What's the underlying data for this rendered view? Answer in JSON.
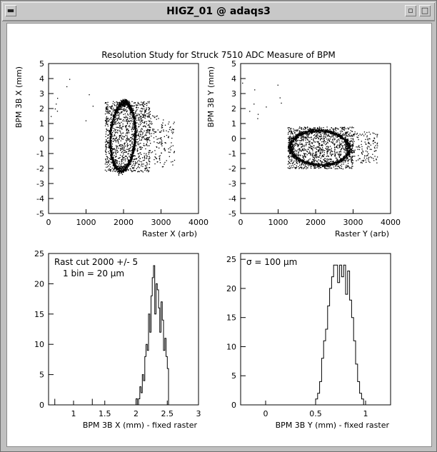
{
  "window": {
    "title": "HIGZ_01 @ adaqs3",
    "icons": [
      "menu-icon",
      "minimize-icon",
      "maximize-icon"
    ]
  },
  "figure": {
    "title": "Resolution Study for Struck 7510 ADC Measure of BPM"
  },
  "chart_data": [
    {
      "type": "scatter",
      "xlabel": "Raster X (arb)",
      "ylabel": "BPM 3B X (mm)",
      "xlim": [
        0,
        4000
      ],
      "ylim": [
        -5,
        5
      ],
      "xticks": [
        0,
        1000,
        2000,
        3000,
        4000
      ],
      "yticks": [
        -5,
        -4,
        -3,
        -2,
        -1,
        0,
        1,
        2,
        3,
        4,
        5
      ],
      "ring": {
        "cx": 1970,
        "cy": 0.15,
        "rx": 330,
        "ry": 2.25,
        "tilt": 0.15
      },
      "band": {
        "x": [
          1500,
          2700
        ],
        "y": [
          -2.2,
          2.5
        ]
      },
      "tail": {
        "x": [
          2700,
          3350
        ],
        "y": [
          -2.0,
          1.6
        ]
      }
    },
    {
      "type": "scatter",
      "xlabel": "Raster Y (arb)",
      "ylabel": "BPM 3B Y (mm)",
      "xlim": [
        0,
        4000
      ],
      "ylim": [
        -5,
        5
      ],
      "xticks": [
        0,
        1000,
        2000,
        3000,
        4000
      ],
      "yticks": [
        -5,
        -4,
        -3,
        -2,
        -1,
        0,
        1,
        2,
        3,
        4,
        5
      ],
      "ring": {
        "cx": 2100,
        "cy": -0.6,
        "rx": 780,
        "ry": 1.15,
        "tilt": -0.08
      },
      "band": {
        "x": [
          1250,
          3000
        ],
        "y": [
          -2.0,
          0.8
        ]
      },
      "tail": {
        "x": [
          3000,
          3650
        ],
        "y": [
          -1.6,
          0.5
        ]
      }
    },
    {
      "type": "histogram",
      "xlabel": "BPM 3B X (mm) - fixed raster",
      "xlim": [
        0.6,
        3.0
      ],
      "ylim": [
        0,
        25
      ],
      "xticks": [
        1,
        1.5,
        2,
        2.5,
        3
      ],
      "yticks": [
        0,
        5,
        10,
        15,
        20,
        25
      ],
      "annotations": [
        "Rast cut 2000 +/- 5",
        "1 bin = 20 µm"
      ],
      "bin_start": 2.0,
      "bin_width": 0.02,
      "counts": [
        1,
        0,
        1,
        3,
        2,
        5,
        4,
        8,
        10,
        9,
        15,
        12,
        18,
        21,
        23,
        15,
        20,
        19,
        16,
        12,
        17,
        14,
        9,
        11,
        8,
        6
      ],
      "outliers": [
        {
          "x": 0.7,
          "count": 1
        },
        {
          "x": 1.3,
          "count": 1
        }
      ]
    },
    {
      "type": "histogram",
      "xlabel": "BPM 3B Y (mm) - fixed raster",
      "xlim": [
        -0.25,
        1.25
      ],
      "ylim": [
        0,
        26
      ],
      "xticks": [
        0,
        0.5,
        1
      ],
      "yticks": [
        0,
        5,
        10,
        15,
        20,
        25
      ],
      "annotations": [
        "σ = 100 µm"
      ],
      "bin_start": 0.5,
      "bin_width": 0.02,
      "counts": [
        1,
        2,
        4,
        8,
        11,
        13,
        17,
        20,
        22,
        24,
        24,
        21,
        24,
        22,
        24,
        19,
        23,
        18,
        15,
        11,
        7,
        4,
        2,
        1
      ]
    }
  ]
}
